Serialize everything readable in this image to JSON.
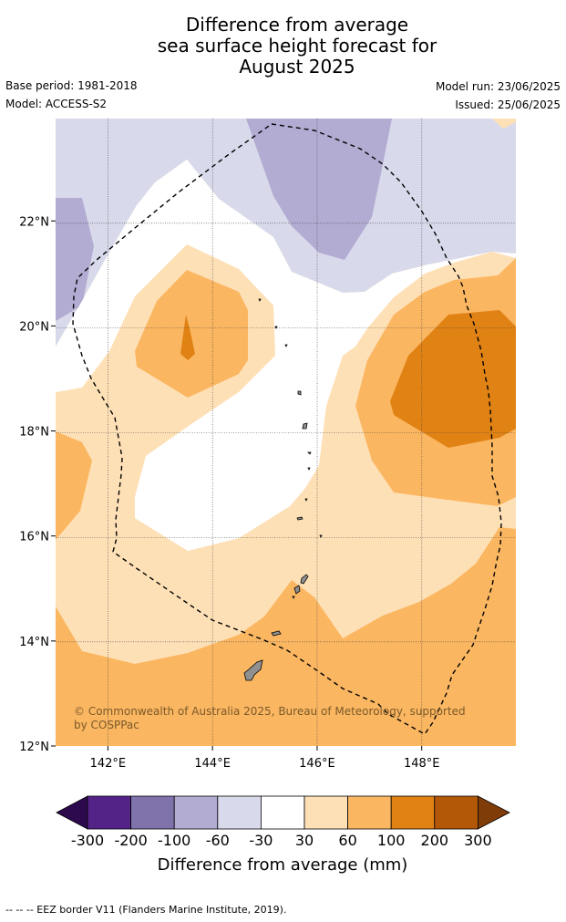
{
  "title": {
    "line1": "Difference from average",
    "line2": "sea surface height forecast for",
    "line3": "August 2025"
  },
  "meta": {
    "base_period": "Base period: 1981-2018",
    "model": "Model: ACCESS-S2",
    "model_run": "Model run: 23/06/2025",
    "issued": "Issued: 25/06/2025"
  },
  "map": {
    "lon_range": [
      141,
      149.8
    ],
    "lat_range": [
      12,
      23.95
    ],
    "lon_ticks": [
      {
        "value": 142,
        "label": "142°E"
      },
      {
        "value": 144,
        "label": "144°E"
      },
      {
        "value": 146,
        "label": "146°E"
      },
      {
        "value": 148,
        "label": "148°E"
      }
    ],
    "lat_ticks": [
      {
        "value": 12,
        "label": "12°N"
      },
      {
        "value": 14,
        "label": "14°N"
      },
      {
        "value": 16,
        "label": "16°N"
      },
      {
        "value": 18,
        "label": "18°N"
      },
      {
        "value": 20,
        "label": "20°N"
      },
      {
        "value": 22,
        "label": "22°N"
      }
    ],
    "copyright": "© Commonwealth of Australia 2025, Bureau of Meteorology, supported by COSPPac",
    "colors": {
      "lt_neg300": "#2d0a4e",
      "neg300_neg200": "#542388",
      "neg200_neg100": "#8073ac",
      "neg100_neg60": "#b2abd2",
      "neg60_neg30": "#d8daeb",
      "neg30_30": "#ffffff",
      "pos30_60": "#fee0b6",
      "pos60_100": "#fbb661",
      "pos100_200": "#e08214",
      "pos200_300": "#b35806",
      "gt_300": "#7f3b08",
      "land": "#909090",
      "eez": "#000000"
    }
  },
  "colorbar": {
    "ticks": [
      "-300",
      "-200",
      "-100",
      "-60",
      "-30",
      "30",
      "60",
      "100",
      "200",
      "300"
    ],
    "label": "Difference from average (mm)"
  },
  "footer": {
    "text": "--  --  -- EEZ border V11 (Flanders Marine Institute, 2019)."
  }
}
